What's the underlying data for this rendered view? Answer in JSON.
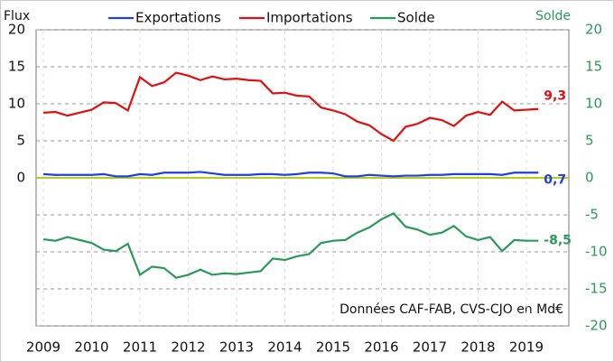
{
  "chart_data": {
    "type": "line",
    "y_label": "Flux",
    "y2_label": "Solde",
    "annotation": "Données CAF-FAB, CVS-CJO en Md€",
    "x": [
      2009,
      2009.25,
      2009.5,
      2009.75,
      2010,
      2010.25,
      2010.5,
      2010.75,
      2011,
      2011.25,
      2011.5,
      2011.75,
      2012,
      2012.25,
      2012.5,
      2012.75,
      2013,
      2013.25,
      2013.5,
      2013.75,
      2014,
      2014.25,
      2014.5,
      2014.75,
      2015,
      2015.25,
      2015.5,
      2015.75,
      2016,
      2016.25,
      2016.5,
      2016.75,
      2017,
      2017.25,
      2017.5,
      2017.75,
      2018,
      2018.25,
      2018.5,
      2018.75,
      2019,
      2019.25
    ],
    "xlim": [
      2008.85,
      2019.88
    ],
    "xticks": [
      2009,
      2010,
      2011,
      2012,
      2013,
      2014,
      2015,
      2016,
      2017,
      2018,
      2019
    ],
    "ylim": [
      -20,
      20
    ],
    "yticks": [
      0,
      5,
      10,
      15,
      20
    ],
    "y2lim": [
      -20,
      20
    ],
    "y2ticks": [
      20,
      15,
      10,
      5,
      0,
      -5,
      -10,
      -15,
      -20
    ],
    "grid": true,
    "zero_line_color": "#b5cc18",
    "series": [
      {
        "name": "Exportations",
        "color": "#2040e0",
        "values": [
          0.5,
          0.4,
          0.4,
          0.4,
          0.4,
          0.5,
          0.2,
          0.2,
          0.5,
          0.4,
          0.7,
          0.7,
          0.7,
          0.8,
          0.6,
          0.4,
          0.4,
          0.4,
          0.5,
          0.5,
          0.4,
          0.5,
          0.7,
          0.7,
          0.6,
          0.2,
          0.2,
          0.4,
          0.3,
          0.2,
          0.3,
          0.3,
          0.4,
          0.4,
          0.5,
          0.5,
          0.5,
          0.5,
          0.4,
          0.7,
          0.7,
          0.7
        ],
        "value_labels": [
          null,
          null,
          null,
          null,
          null,
          null,
          null,
          null,
          null,
          null,
          null,
          null,
          null,
          null,
          null,
          null,
          null,
          null,
          null,
          null,
          null,
          null,
          null,
          null,
          null,
          null,
          null,
          null,
          null,
          null,
          null,
          null,
          null,
          null,
          null,
          null,
          null,
          null,
          null,
          null,
          null,
          "0,7"
        ]
      },
      {
        "name": "Importations",
        "color": "#e01010",
        "values": [
          8.8,
          8.9,
          8.4,
          8.8,
          9.2,
          10.2,
          10.1,
          9.1,
          13.6,
          12.4,
          12.9,
          14.2,
          13.8,
          13.2,
          13.7,
          13.3,
          13.4,
          13.2,
          13.1,
          11.4,
          11.5,
          11.1,
          11.0,
          9.5,
          9.1,
          8.6,
          7.6,
          7.1,
          5.9,
          5.0,
          6.9,
          7.3,
          8.1,
          7.8,
          7.0,
          8.4,
          8.9,
          8.5,
          10.3,
          9.1,
          9.2,
          9.3
        ],
        "value_labels": [
          null,
          null,
          null,
          null,
          null,
          null,
          null,
          null,
          null,
          null,
          null,
          null,
          null,
          null,
          null,
          null,
          null,
          null,
          null,
          null,
          null,
          null,
          null,
          null,
          null,
          null,
          null,
          null,
          null,
          null,
          null,
          null,
          null,
          null,
          null,
          null,
          null,
          null,
          null,
          null,
          null,
          "9,3"
        ]
      },
      {
        "name": "Solde",
        "color": "#2a9a5a",
        "axis": "y2",
        "values": [
          -8.3,
          -8.5,
          -8.0,
          -8.4,
          -8.8,
          -9.7,
          -9.9,
          -8.9,
          -13.1,
          -12.0,
          -12.2,
          -13.5,
          -13.1,
          -12.4,
          -13.1,
          -12.9,
          -13.0,
          -12.8,
          -12.6,
          -10.9,
          -11.1,
          -10.6,
          -10.3,
          -8.8,
          -8.5,
          -8.4,
          -7.4,
          -6.7,
          -5.6,
          -4.8,
          -6.6,
          -7.0,
          -7.7,
          -7.4,
          -6.5,
          -7.9,
          -8.4,
          -8.0,
          -9.9,
          -8.4,
          -8.5,
          -8.5
        ],
        "value_labels": [
          null,
          null,
          null,
          null,
          null,
          null,
          null,
          null,
          null,
          null,
          null,
          null,
          null,
          null,
          null,
          null,
          null,
          null,
          null,
          null,
          null,
          null,
          null,
          null,
          null,
          null,
          null,
          null,
          null,
          null,
          null,
          null,
          null,
          null,
          null,
          null,
          null,
          null,
          null,
          null,
          null,
          "-8,5"
        ]
      }
    ]
  }
}
